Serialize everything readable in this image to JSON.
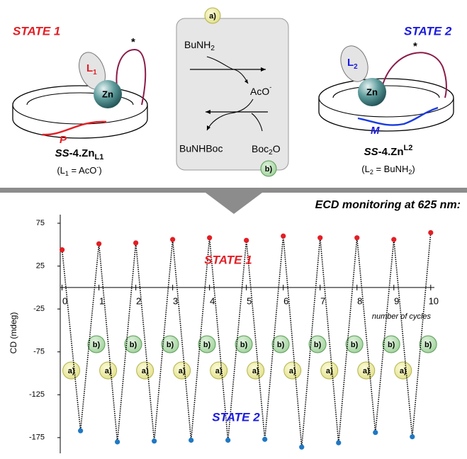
{
  "scheme": {
    "star": "*",
    "state1": {
      "title": "STATE 1",
      "ligand": "L",
      "ligand_index": "1",
      "metal": "Zn",
      "helix": "P",
      "name": [
        "SS",
        "-4.Zn",
        "L1"
      ],
      "note": [
        "(L",
        "1",
        " = AcO",
        "-",
        ")"
      ]
    },
    "state2": {
      "title": "STATE 2",
      "ligand": "L",
      "ligand_index": "2",
      "metal": "Zn",
      "helix": "M",
      "name": [
        "SS",
        "-4.Zn",
        "L2"
      ],
      "note": [
        "(L",
        "2",
        " = BuNH",
        "2",
        ")"
      ]
    },
    "cycle": {
      "step_a": "a)",
      "step_b": "b)",
      "amine": [
        "BuNH",
        "2"
      ],
      "acetate": [
        "AcO",
        "-"
      ],
      "product": "BuNHBoc",
      "reagent": [
        "Boc",
        "2",
        "O"
      ]
    }
  },
  "chart_data": {
    "type": "line",
    "subtitle": "ECD monitoring at 625 nm:",
    "y_label": "CD (mdeg)",
    "x_label": "number of cycles",
    "state1_label": "STATE 1",
    "state2_label": "STATE 2",
    "step_a_label": "a)",
    "step_b_label": "b)",
    "x": [
      0,
      0.5,
      1,
      1.5,
      2,
      2.5,
      3,
      3.5,
      4,
      4.5,
      5,
      5.5,
      6,
      6.5,
      7,
      7.5,
      8,
      8.5,
      9,
      9.5,
      10
    ],
    "values": [
      44,
      -167,
      51,
      -180,
      52,
      -179,
      56,
      -178,
      58,
      -178,
      55,
      -177,
      60,
      -186,
      58,
      -181,
      58,
      -169,
      56,
      -174,
      64
    ],
    "line_color": "#000000",
    "state1_color": "#e31e24",
    "state2_color": "#1f78c4",
    "xlim": [
      -0.05,
      10.1
    ],
    "ylim": [
      -190,
      85
    ],
    "xticks": [
      0,
      1,
      2,
      3,
      4,
      5,
      6,
      7,
      8,
      9,
      10
    ],
    "yticks": [
      75,
      25,
      -25,
      -75,
      -125,
      -175
    ]
  }
}
